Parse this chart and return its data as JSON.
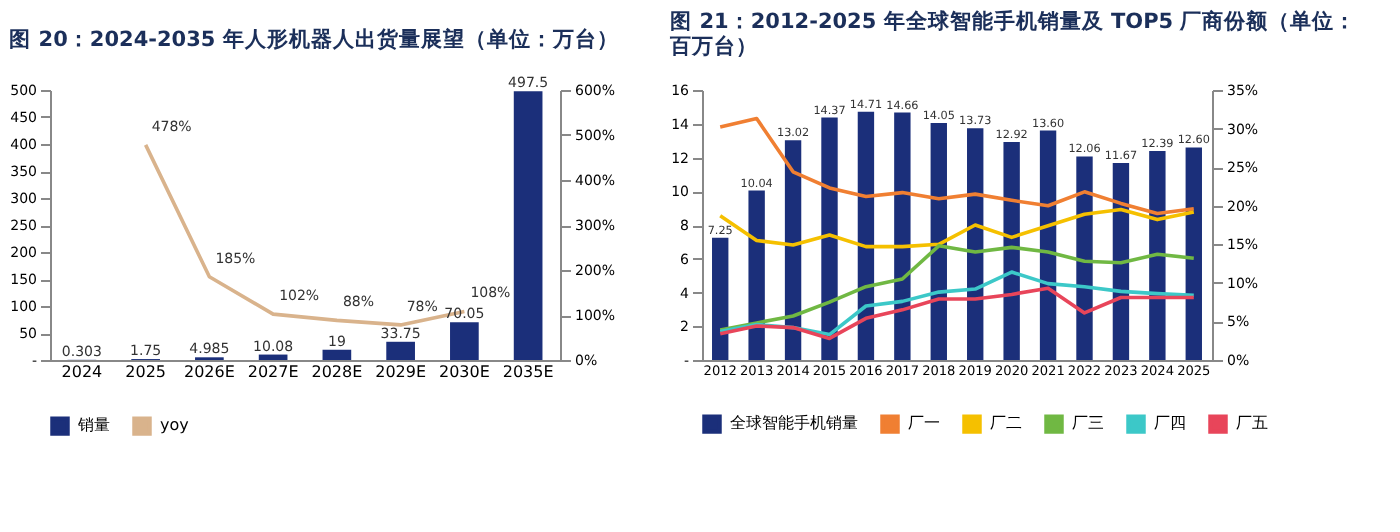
{
  "chart_data": [
    {
      "type": "bar",
      "title": "图 20：2024-2035 年人形机器人出货量展望（单位：万台）",
      "categories": [
        "2024",
        "2025",
        "2026E",
        "2027E",
        "2028E",
        "2029E",
        "2030E",
        "2035E"
      ],
      "series": [
        {
          "name": "销量",
          "color": "#1b2f7a",
          "values": [
            0.303,
            1.75,
            4.985,
            10.08,
            19,
            33.75,
            70.05,
            497.5
          ],
          "value_labels": [
            "0.303",
            "1.75",
            "4.985",
            "10.08",
            "19",
            "33.75",
            "70.05",
            "497.5"
          ]
        },
        {
          "name": "yoy",
          "type": "line",
          "axis": "y2",
          "color": "#d9b38c",
          "values": [
            null,
            478,
            185,
            102,
            88,
            78,
            108,
            null
          ],
          "value_labels": [
            null,
            "478%",
            "185%",
            "102%",
            "88%",
            "78%",
            "108%",
            null
          ]
        }
      ],
      "ylim": [
        0,
        500
      ],
      "yticks": [
        {
          "value": 0,
          "label": "-"
        },
        50,
        100,
        150,
        200,
        250,
        300,
        350,
        400,
        450,
        500
      ],
      "y2lim": [
        0,
        600
      ],
      "y2ticks": [
        {
          "value": 0,
          "label": "0%"
        },
        {
          "value": 100,
          "label": "100%"
        },
        {
          "value": 200,
          "label": "200%"
        },
        {
          "value": 300,
          "label": "300%"
        },
        {
          "value": 400,
          "label": "400%"
        },
        {
          "value": 500,
          "label": "500%"
        },
        {
          "value": 600,
          "label": "600%"
        }
      ],
      "legend": "bottom"
    },
    {
      "type": "bar",
      "title": "图 21：2012-2025 年全球智能手机销量及 TOP5 厂商份额（单位：百万台）",
      "categories": [
        "2012",
        "2013",
        "2014",
        "2015",
        "2016",
        "2017",
        "2018",
        "2019",
        "2020",
        "2021",
        "2022",
        "2023",
        "2024",
        "2025"
      ],
      "series": [
        {
          "name": "全球智能手机销量",
          "color": "#1b2f7a",
          "values": [
            7.25,
            10.04,
            13.02,
            14.37,
            14.71,
            14.66,
            14.05,
            13.73,
            12.92,
            13.6,
            12.06,
            11.67,
            12.39,
            12.6
          ],
          "value_labels": [
            "7.25",
            "10.04",
            "13.02",
            "14.37",
            "14.71",
            "14.66",
            "14.05",
            "13.73",
            "12.92",
            "13.60",
            "12.06",
            "11.67",
            "12.39",
            "12.60"
          ]
        },
        {
          "name": "厂一",
          "type": "line",
          "axis": "y2",
          "color": "#f07f32",
          "values": [
            30.2,
            31.3,
            24.4,
            22.3,
            21.2,
            21.7,
            20.9,
            21.5,
            20.7,
            20.0,
            21.8,
            20.3,
            19.0,
            19.6
          ]
        },
        {
          "name": "厂二",
          "type": "line",
          "axis": "y2",
          "color": "#f5c000",
          "values": [
            18.7,
            15.5,
            14.9,
            16.2,
            14.7,
            14.7,
            15.0,
            17.5,
            15.9,
            17.4,
            18.9,
            19.5,
            18.2,
            19.2
          ]
        },
        {
          "name": "厂三",
          "type": "line",
          "axis": "y2",
          "color": "#70b843",
          "values": [
            3.9,
            4.8,
            5.7,
            7.5,
            9.5,
            10.5,
            14.8,
            14.0,
            14.6,
            14.0,
            12.8,
            12.6,
            13.7,
            13.2
          ]
        },
        {
          "name": "厂四",
          "type": "line",
          "axis": "y2",
          "color": "#3cc8c8",
          "values": [
            3.7,
            4.6,
            4.2,
            3.3,
            7.0,
            7.6,
            8.8,
            9.2,
            11.4,
            9.9,
            9.5,
            8.9,
            8.6,
            8.4
          ]
        },
        {
          "name": "厂五",
          "type": "line",
          "axis": "y2",
          "color": "#e8455a",
          "values": [
            3.4,
            4.4,
            4.2,
            2.8,
            5.4,
            6.5,
            7.9,
            7.9,
            8.5,
            9.3,
            6.1,
            8.1,
            8.1,
            8.1
          ]
        }
      ],
      "ylim": [
        0,
        16
      ],
      "yticks": [
        {
          "value": 0,
          "label": "-"
        },
        2,
        4,
        6,
        8,
        10,
        12,
        14,
        16
      ],
      "y2lim": [
        0,
        35
      ],
      "y2ticks": [
        {
          "value": 0,
          "label": "0%"
        },
        {
          "value": 5,
          "label": "5%"
        },
        {
          "value": 10,
          "label": "10%"
        },
        {
          "value": 15,
          "label": "15%"
        },
        {
          "value": 20,
          "label": "20%"
        },
        {
          "value": 25,
          "label": "25%"
        },
        {
          "value": 30,
          "label": "30%"
        },
        {
          "value": 35,
          "label": "35%"
        }
      ],
      "legend": "bottom"
    }
  ]
}
